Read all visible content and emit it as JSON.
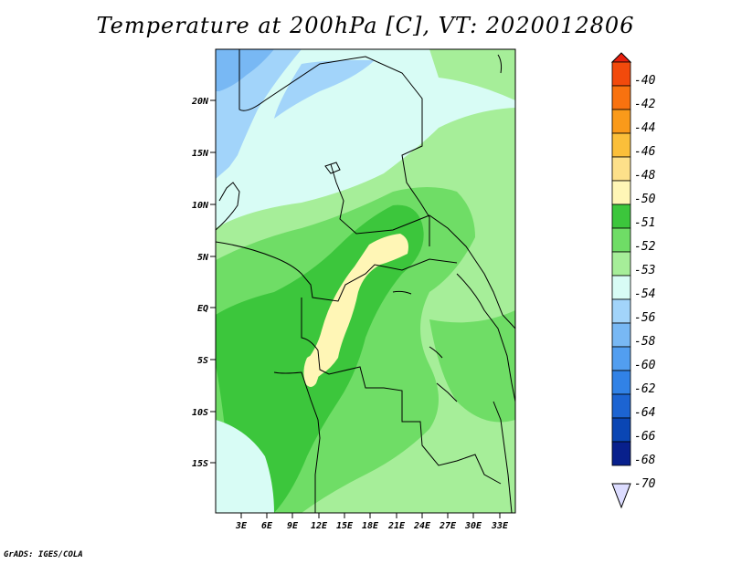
{
  "title": "Temperature at 200hPa [C], VT: 2020012806",
  "credit": "GrADS: IGES/COLA",
  "lat_ticks": [
    "20N",
    "15N",
    "10N",
    "5N",
    "EQ",
    "5S",
    "10S",
    "15S"
  ],
  "lon_ticks": [
    "3E",
    "6E",
    "9E",
    "12E",
    "15E",
    "18E",
    "21E",
    "24E",
    "27E",
    "30E",
    "33E"
  ],
  "colorbar": {
    "levels": [
      "-40",
      "-42",
      "-44",
      "-46",
      "-48",
      "-50",
      "-51",
      "-52",
      "-53",
      "-54",
      "-56",
      "-58",
      "-60",
      "-62",
      "-64",
      "-66",
      "-68",
      "-70"
    ],
    "colors": [
      "#e8200e",
      "#f24a0c",
      "#f8720f",
      "#fa9a1a",
      "#fbbf3a",
      "#fde08a",
      "#fff6b6",
      "#3cc63c",
      "#6fdd66",
      "#a6ee99",
      "#d8fcf5",
      "#a2d4fa",
      "#78b8f4",
      "#529ef0",
      "#3182e6",
      "#1c64d2",
      "#0a46b4",
      "#08208c",
      "#dcdcff"
    ]
  }
}
